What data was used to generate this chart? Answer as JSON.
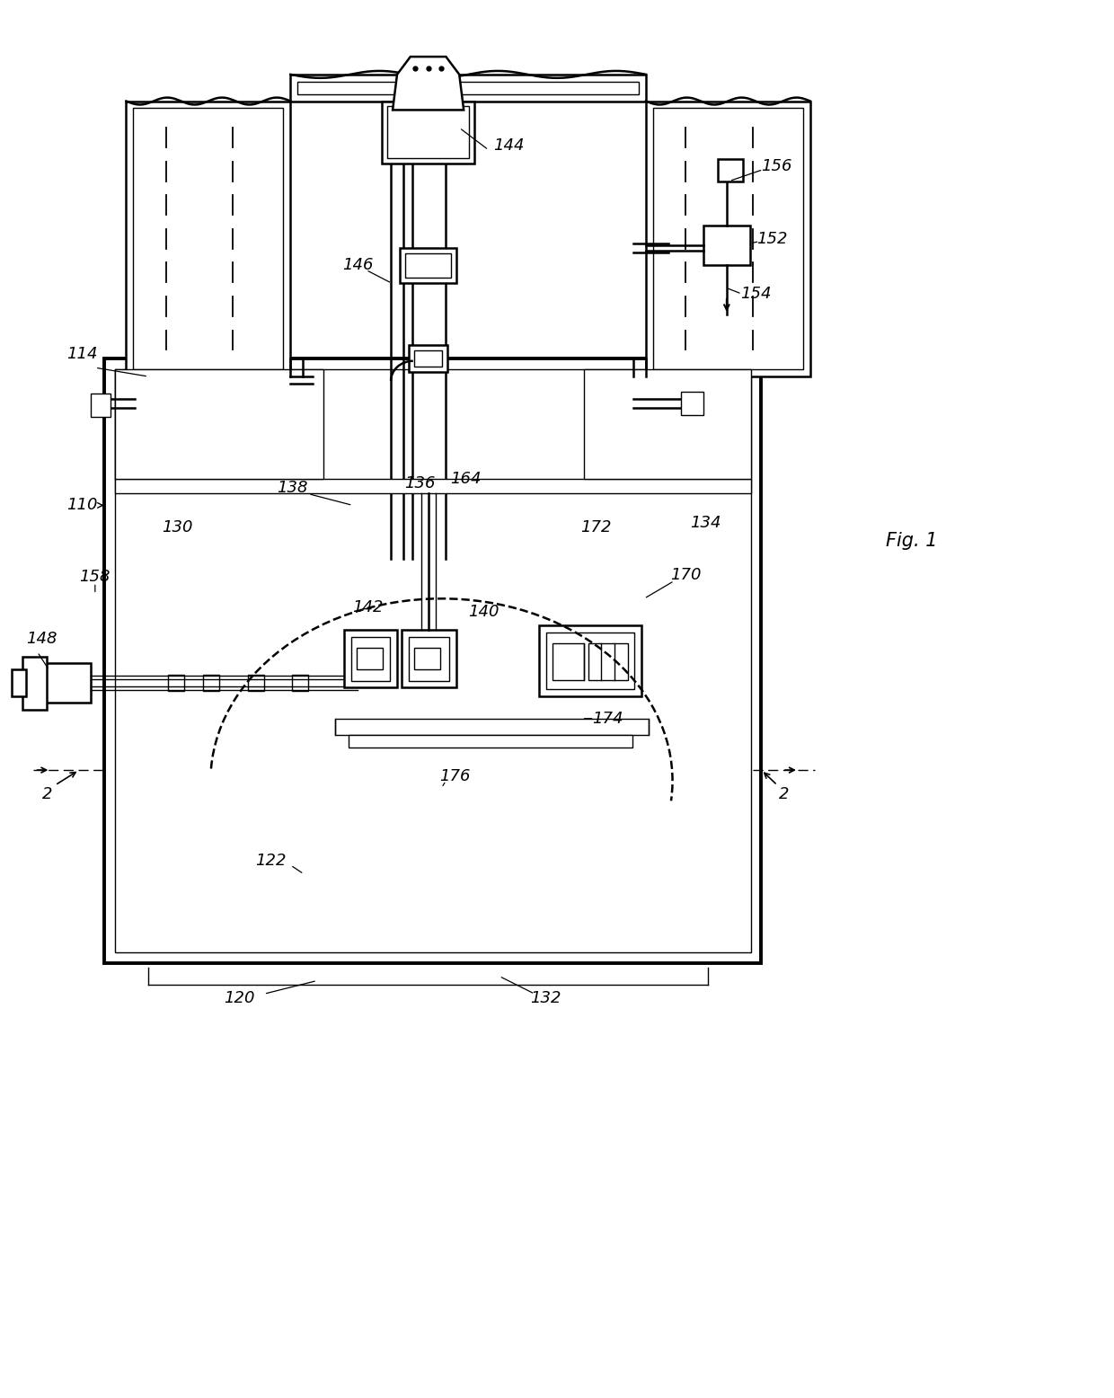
{
  "bg_color": "#ffffff",
  "fig_width": 12.4,
  "fig_height": 15.56,
  "line_color": "#000000"
}
